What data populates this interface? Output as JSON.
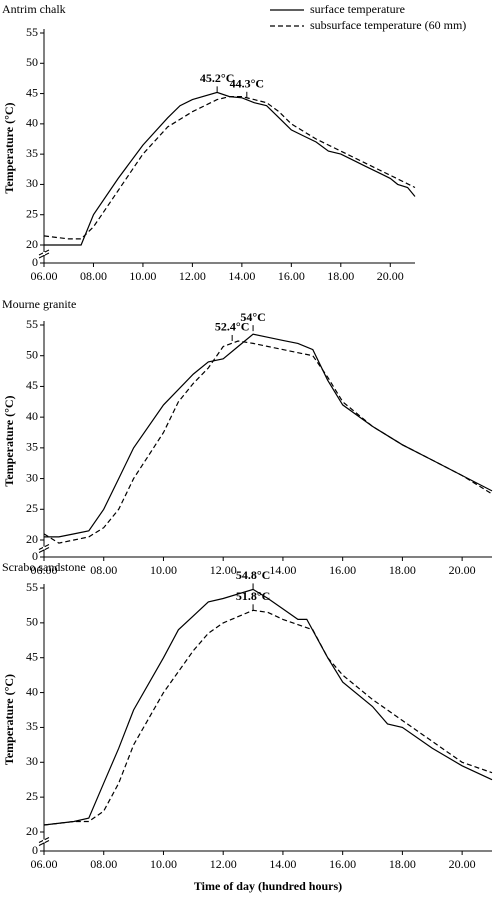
{
  "chart_data": [
    {
      "type": "line",
      "title": "Antrim chalk",
      "y_label": "Temperature (°C)",
      "legend": "upper right",
      "xlim": [
        6,
        21
      ],
      "ylim": [
        0,
        55
      ],
      "axis_break": [
        0,
        20
      ],
      "xticks": [
        {
          "value": 6,
          "label": "06.00"
        },
        {
          "value": 8,
          "label": "08.00"
        },
        {
          "value": 10,
          "label": "10.00"
        },
        {
          "value": 12,
          "label": "12.00"
        },
        {
          "value": 14,
          "label": "14.00"
        },
        {
          "value": 16,
          "label": "16.00"
        },
        {
          "value": 18,
          "label": "18.00"
        },
        {
          "value": 20,
          "label": "20.00"
        }
      ],
      "yticks": [
        0,
        20,
        25,
        30,
        35,
        40,
        45,
        50,
        55
      ],
      "series": [
        {
          "name": "surface temperature",
          "color": "#000000",
          "dash": false,
          "x": [
            6,
            7.5,
            8,
            9,
            10,
            11,
            11.5,
            12,
            13,
            13.5,
            14,
            14.5,
            15,
            15.5,
            16,
            16.5,
            17,
            17.5,
            18,
            18.5,
            19,
            19.5,
            20,
            20.3,
            20.7,
            21
          ],
          "values": [
            20,
            20,
            25,
            31,
            36.5,
            41,
            43,
            44,
            45.2,
            44.5,
            44.3,
            43.5,
            43,
            41,
            39,
            38,
            37,
            35.5,
            35,
            34,
            33,
            32,
            31,
            30,
            29.5,
            28
          ]
        },
        {
          "name": "subsurface temperature (60 mm)",
          "color": "#000000",
          "dash": true,
          "x": [
            6,
            7,
            7.5,
            8,
            9,
            10,
            11,
            12,
            13,
            13.5,
            14,
            14.5,
            15,
            15.5,
            16,
            17,
            18,
            19,
            20,
            21
          ],
          "values": [
            21.5,
            21,
            21,
            23,
            29,
            35,
            39.5,
            42,
            44,
            44.5,
            44.5,
            44,
            43.5,
            42,
            40,
            37.5,
            35.5,
            33.5,
            31.5,
            29.5
          ]
        }
      ],
      "annotations": [
        {
          "text": "45.2°C",
          "x": 13,
          "y": 45.2
        },
        {
          "text": "44.3°C",
          "x": 14.2,
          "y": 44.3
        }
      ]
    },
    {
      "type": "line",
      "title": "Mourne granite",
      "y_label": "Temperature (°C)",
      "xlim": [
        6,
        21
      ],
      "ylim": [
        0,
        55
      ],
      "axis_break": [
        0,
        20
      ],
      "xticks": [
        {
          "value": 6,
          "label": "06.00"
        },
        {
          "value": 8,
          "label": "08.00"
        },
        {
          "value": 10,
          "label": "10.00"
        },
        {
          "value": 12,
          "label": "12.00"
        },
        {
          "value": 14,
          "label": "14.00"
        },
        {
          "value": 16,
          "label": "16.00"
        },
        {
          "value": 18,
          "label": "18.00"
        },
        {
          "value": 20,
          "label": "20.00"
        }
      ],
      "yticks": [
        0,
        20,
        25,
        30,
        35,
        40,
        45,
        50,
        55
      ],
      "series": [
        {
          "color": "#000000",
          "dash": false,
          "x": [
            6,
            6.5,
            7,
            7.5,
            8,
            8.5,
            9,
            10,
            11,
            11.5,
            12,
            12.5,
            13,
            13.5,
            14,
            14.5,
            15,
            15.5,
            16,
            17,
            18,
            19,
            20,
            21
          ],
          "values": [
            20.5,
            20.5,
            21,
            21.5,
            25,
            30,
            35,
            42,
            47,
            49,
            49.5,
            51.5,
            53.5,
            53,
            52.5,
            52,
            51,
            46,
            42,
            38.5,
            35.5,
            33,
            30.5,
            28
          ]
        },
        {
          "color": "#000000",
          "dash": true,
          "x": [
            6,
            6.5,
            7,
            7.5,
            8,
            8.5,
            9,
            10,
            10.5,
            11,
            11.5,
            12,
            12.5,
            13,
            13.5,
            14,
            15,
            15.5,
            16,
            17,
            18,
            19,
            20,
            21
          ],
          "values": [
            21,
            19.5,
            20,
            20.5,
            22,
            25,
            30,
            37.5,
            42.5,
            45.5,
            48,
            51.5,
            52.4,
            52,
            51.5,
            51,
            50,
            46.5,
            42.5,
            38.5,
            35.5,
            33,
            30.5,
            27.5
          ]
        }
      ],
      "annotations": [
        {
          "text": "52.4°C",
          "x": 12.3,
          "y": 52.4
        },
        {
          "text": "54°C",
          "x": 13,
          "y": 54
        }
      ]
    },
    {
      "type": "line",
      "title": "Scrabo sandstone",
      "y_label": "Temperature (°C)",
      "x_label": "Time of day (hundred hours)",
      "xlim": [
        6,
        21
      ],
      "ylim": [
        0,
        55
      ],
      "axis_break": [
        0,
        20
      ],
      "xticks": [
        {
          "value": 6,
          "label": "06.00"
        },
        {
          "value": 8,
          "label": "08.00"
        },
        {
          "value": 10,
          "label": "10.00"
        },
        {
          "value": 12,
          "label": "12.00"
        },
        {
          "value": 14,
          "label": "14.00"
        },
        {
          "value": 16,
          "label": "16.00"
        },
        {
          "value": 18,
          "label": "18.00"
        },
        {
          "value": 20,
          "label": "20.00"
        }
      ],
      "yticks": [
        0,
        20,
        25,
        30,
        35,
        40,
        45,
        50,
        55
      ],
      "series": [
        {
          "color": "#000000",
          "dash": false,
          "x": [
            6,
            7,
            7.5,
            8,
            8.5,
            9,
            10,
            10.5,
            11,
            11.5,
            12,
            13,
            13.5,
            14,
            14.5,
            14.8,
            15.5,
            16,
            17,
            17.5,
            18,
            19,
            20,
            21
          ],
          "values": [
            21,
            21.5,
            22,
            27,
            32,
            37.5,
            45,
            49,
            51,
            53,
            53.5,
            54.8,
            53.5,
            52,
            50.5,
            50.5,
            45,
            41.5,
            38,
            35.5,
            35,
            32,
            29.5,
            27.5
          ]
        },
        {
          "color": "#000000",
          "dash": true,
          "x": [
            6,
            7,
            7.5,
            8,
            8.5,
            9,
            10,
            11,
            11.5,
            12,
            13,
            13.5,
            14,
            15,
            15.5,
            16,
            17,
            18,
            19,
            20,
            21
          ],
          "values": [
            21,
            21.5,
            21.5,
            23,
            27,
            32.5,
            40,
            46,
            48.5,
            50,
            51.8,
            51.5,
            50.5,
            49,
            45,
            42.5,
            39,
            36,
            33,
            30,
            28.5
          ]
        }
      ],
      "annotations": [
        {
          "text": "54.8°C",
          "x": 13,
          "y": 54.8
        },
        {
          "text": "51.8°C",
          "x": 13,
          "y": 51.8
        }
      ]
    }
  ]
}
